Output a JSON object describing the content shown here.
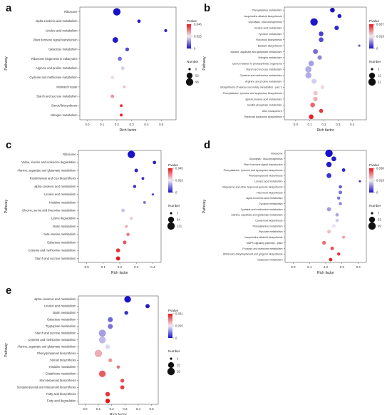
{
  "chart_data": [
    {
      "panel": "a",
      "type": "scatter",
      "xlabel": "Rich factor",
      "ylabel": "Pathway",
      "xlim": [
        -0.05,
        0.6
      ],
      "xticks": [
        "0.0",
        "0.1",
        "0.2",
        "0.3",
        "0.4",
        "0.5"
      ],
      "legend": {
        "pvalue_title": "Pvalue",
        "pvalue_ticks": [
          "0.046",
          "0.023",
          "0"
        ],
        "number_title": "Number",
        "number_labels": [
          "6",
          "52",
          "98"
        ]
      },
      "categories": [
        "Ribosome",
        "alpha-Linolenic acid metabolism",
        "Linoleic acid metabolism",
        "Plant hormone signal transduction",
        "Galactose metabolism",
        "Ribosome biogenesis in eukaryotes",
        "Arginine and proline metabolism",
        "Cysteine and methionine metabolism",
        "Mismatch repair",
        "Starch and sucrose metabolism",
        "Steroid biosynthesis",
        "Nitrogen metabolism"
      ],
      "rich_factor": [
        0.2,
        0.35,
        0.53,
        0.19,
        0.27,
        0.22,
        0.24,
        0.17,
        0.25,
        0.17,
        0.23,
        0.23
      ],
      "pvalue": [
        0.0,
        0.001,
        0.002,
        0.001,
        0.006,
        0.01,
        0.02,
        0.025,
        0.028,
        0.032,
        0.043,
        0.045
      ],
      "number": [
        98,
        10,
        8,
        45,
        14,
        18,
        12,
        10,
        7,
        12,
        7,
        7
      ]
    },
    {
      "panel": "b",
      "type": "scatter",
      "xlabel": "Rich factor",
      "ylabel": "Pathway",
      "xlim": [
        -0.08,
        0.5
      ],
      "xticks": [
        "0.0",
        "0.1",
        "0.2",
        "0.3",
        "0.4"
      ],
      "legend": {
        "pvalue_title": "Pvalue",
        "pvalue_ticks": [
          "0.037",
          "0.019",
          "0"
        ],
        "number_title": "Number",
        "number_labels": [
          "3",
          "12",
          "21"
        ]
      },
      "categories": [
        "Phenylalanine metabolism",
        "Isoquinoline alkaloid biosynthesis",
        "Glycolysis / Gluconeogenesis",
        "Linoleic acid metabolism",
        "Tyrosine metabolism",
        "Flavonoid biosynthesis",
        "Betalain biosynthesis",
        "Alanine, aspartate and glutamate metabolism",
        "Nitrogen metabolism",
        "Carbon fixation in photosynthetic organisms",
        "Starch and sucrose metabolism",
        "Cysteine and methionine metabolism",
        "Arginine and proline metabolism",
        "Biosynthesis of various secondary metabolites - part 3",
        "Phenylalanine, tyrosine and tryptophan biosynthesis",
        "alpha-Linolenic acid metabolism",
        "Inositol phosphate metabolism",
        "ABC transporters",
        "Terpenoid backbone biosynthesis"
      ],
      "rich_factor": [
        0.26,
        0.31,
        0.13,
        0.29,
        0.18,
        0.18,
        0.45,
        0.14,
        0.17,
        0.11,
        0.09,
        0.09,
        0.13,
        0.19,
        0.14,
        0.14,
        0.12,
        0.18,
        0.11
      ],
      "pvalue": [
        0.0,
        0.001,
        0.0005,
        0.002,
        0.004,
        0.005,
        0.006,
        0.008,
        0.01,
        0.012,
        0.013,
        0.013,
        0.016,
        0.02,
        0.022,
        0.024,
        0.03,
        0.034,
        0.036
      ],
      "number": [
        7,
        5,
        21,
        6,
        7,
        7,
        3,
        8,
        6,
        10,
        14,
        13,
        8,
        5,
        6,
        6,
        7,
        5,
        7
      ]
    },
    {
      "panel": "c",
      "type": "scatter",
      "xlabel": "Rich factor",
      "ylabel": "Pathway",
      "xlim": [
        -0.05,
        0.45
      ],
      "xticks": [
        "0.0",
        "0.1",
        "0.2",
        "0.3",
        "0.4"
      ],
      "legend": {
        "pvalue_title": "Pvalue",
        "pvalue_ticks": [
          "0.045",
          "0.023",
          "0"
        ],
        "number_title": "Number",
        "number_labels": [
          "7",
          "64",
          "121"
        ]
      },
      "categories": [
        "Ribosome",
        "Valine, leucine and isoleucine degradation",
        "Alanine, aspartate and glutamate metabolism",
        "Pantothenate and CoA biosynthesis",
        "alpha-Linolenic acid metabolism",
        "Linoleic acid metabolism",
        "Histidine metabolism",
        "Glycine, serine and threonine metabolism",
        "Lysine degradation",
        "Biotin metabolism",
        "beta-Alanine metabolism",
        "Galactose metabolism",
        "Cysteine and methionine metabolism",
        "Starch and sucrose metabolism"
      ],
      "rich_factor": [
        0.27,
        0.41,
        0.3,
        0.34,
        0.29,
        0.4,
        0.35,
        0.22,
        0.27,
        0.24,
        0.25,
        0.23,
        0.19,
        0.19
      ],
      "pvalue": [
        0.0,
        0.001,
        0.002,
        0.003,
        0.004,
        0.005,
        0.01,
        0.018,
        0.026,
        0.03,
        0.034,
        0.038,
        0.042,
        0.045
      ],
      "number": [
        121,
        12,
        15,
        8,
        11,
        7,
        8,
        13,
        10,
        8,
        12,
        15,
        20,
        22
      ]
    },
    {
      "panel": "d",
      "type": "scatter",
      "xlabel": "Rich factor",
      "ylabel": "Pathway",
      "xlim": [
        -0.05,
        0.45
      ],
      "xticks": [
        "0.0",
        "0.1",
        "0.2",
        "0.3",
        "0.4"
      ],
      "legend": {
        "pvalue_title": "Pvalue",
        "pvalue_ticks": [
          "0.038",
          "0.019",
          "0"
        ],
        "number_title": "Number",
        "number_labels": [
          "7",
          "53",
          "99"
        ]
      },
      "categories": [
        "Ribosome",
        "Glycolysis / Gluconeogenesis",
        "Plant hormone signal transduction",
        "Phenylalanine, tyrosine and tryptophan biosynthesis",
        "Phenylpropanoid biosynthesis",
        "Linoleic acid metabolism",
        "Ubiquinone and other terpenoid-quinone biosynthesis",
        "Flavonoid biosynthesis",
        "alpha-Linolenic acid metabolism",
        "Tyrosine metabolism",
        "Cysteine and methionine metabolism",
        "Alanine, aspartate and glutamate metabolism",
        "Carotenoid biosynthesis",
        "Phenylalanine metabolism",
        "Pyruvate metabolism",
        "Isoquinoline alkaloid biosynthesis",
        "MAPK signaling pathway - plant",
        "Fructose and mannose metabolism",
        "Stilbenoid, diarylheptanoid and gingerol biosynthesis",
        "Galactose metabolism"
      ],
      "rich_factor": [
        0.22,
        0.25,
        0.22,
        0.31,
        0.22,
        0.41,
        0.29,
        0.29,
        0.28,
        0.29,
        0.22,
        0.27,
        0.27,
        0.25,
        0.22,
        0.31,
        0.19,
        0.24,
        0.28,
        0.23
      ],
      "pvalue": [
        0.0,
        0.001,
        0.0008,
        0.002,
        0.003,
        0.004,
        0.006,
        0.008,
        0.009,
        0.01,
        0.012,
        0.013,
        0.016,
        0.018,
        0.023,
        0.026,
        0.03,
        0.033,
        0.035,
        0.037
      ],
      "number": [
        99,
        30,
        40,
        12,
        30,
        7,
        10,
        12,
        10,
        10,
        20,
        12,
        10,
        12,
        14,
        8,
        16,
        12,
        10,
        12
      ]
    },
    {
      "panel": "e",
      "type": "scatter",
      "xlabel": "Rich factor",
      "ylabel": "Pathway",
      "xlim": [
        -0.05,
        0.55
      ],
      "xticks": [
        "0.0",
        "0.1",
        "0.2",
        "0.3",
        "0.4",
        "0.5"
      ],
      "legend": {
        "pvalue_title": "Pvalue",
        "pvalue_ticks": [
          "0.031",
          "0.015",
          "0"
        ],
        "number_title": "Number",
        "number_labels": [
          "4",
          "15",
          "26"
        ]
      },
      "categories": [
        "alpha-Linolenic acid metabolism",
        "Linoleic acid metabolism",
        "Biotin metabolism",
        "Galactose metabolism",
        "Tryptophan metabolism",
        "Starch and sucrose metabolism",
        "Cysteine and methionine metabolism",
        "Alanine, aspartate and glutamate metabolism",
        "Phenylpropanoid biosynthesis",
        "Steroid biosynthesis",
        "Histidine metabolism",
        "Glutathione metabolism",
        "Monoterpenoid biosynthesis",
        "Sesquiterpenoid and triterpenoid biosynthesis",
        "Fatty acid biosynthesis",
        "Fatty acid degradation"
      ],
      "rich_factor": [
        0.32,
        0.47,
        0.31,
        0.19,
        0.19,
        0.13,
        0.13,
        0.17,
        0.1,
        0.19,
        0.25,
        0.13,
        0.28,
        0.28,
        0.17,
        0.17
      ],
      "pvalue": [
        0.0,
        0.0005,
        0.002,
        0.006,
        0.007,
        0.01,
        0.012,
        0.014,
        0.02,
        0.022,
        0.024,
        0.026,
        0.027,
        0.028,
        0.029,
        0.031
      ],
      "number": [
        20,
        7,
        6,
        10,
        10,
        24,
        22,
        8,
        26,
        6,
        5,
        20,
        6,
        7,
        8,
        8
      ]
    }
  ]
}
